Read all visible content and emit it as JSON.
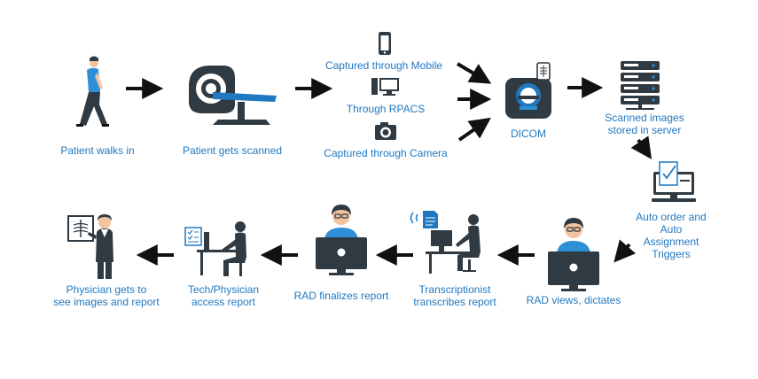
{
  "colors": {
    "dark": "#2f3a42",
    "blue": "#1f78c1",
    "accent": "#2d8fd6",
    "skin": "#f3c2a0",
    "label": "#1f78c1"
  },
  "labels": {
    "patient_walks": "Patient walks in",
    "patient_scanned": "Patient gets scanned",
    "captured_mobile": "Captured through Mobile",
    "through_rpacs": "Through RPACS",
    "captured_camera": "Captured through Camera",
    "dicom": "DICOM",
    "stored_server": "Scanned images\nstored in server",
    "auto_order": "Auto order and Auto\nAssignment Triggers",
    "rad_views": "RAD views, dictates",
    "transcriptionist": "Transcriptionist\ntranscribes report",
    "rad_finalizes": "RAD finalizes report",
    "tech_access": "Tech/Physician\naccess report",
    "physician_sees": "Physician gets to\nsee images and report"
  },
  "icons": [
    "walking-person-icon",
    "ct-scanner-icon",
    "mobile-phone-icon",
    "desktop-computer-icon",
    "camera-icon",
    "dicom-scanner-icon",
    "server-rack-icon",
    "order-monitor-icon",
    "radiologist-monitor-icon",
    "transcriptionist-desk-icon",
    "radiologist-finalize-icon",
    "tech-physician-desk-icon",
    "physician-xray-icon",
    "arrow-icon"
  ]
}
